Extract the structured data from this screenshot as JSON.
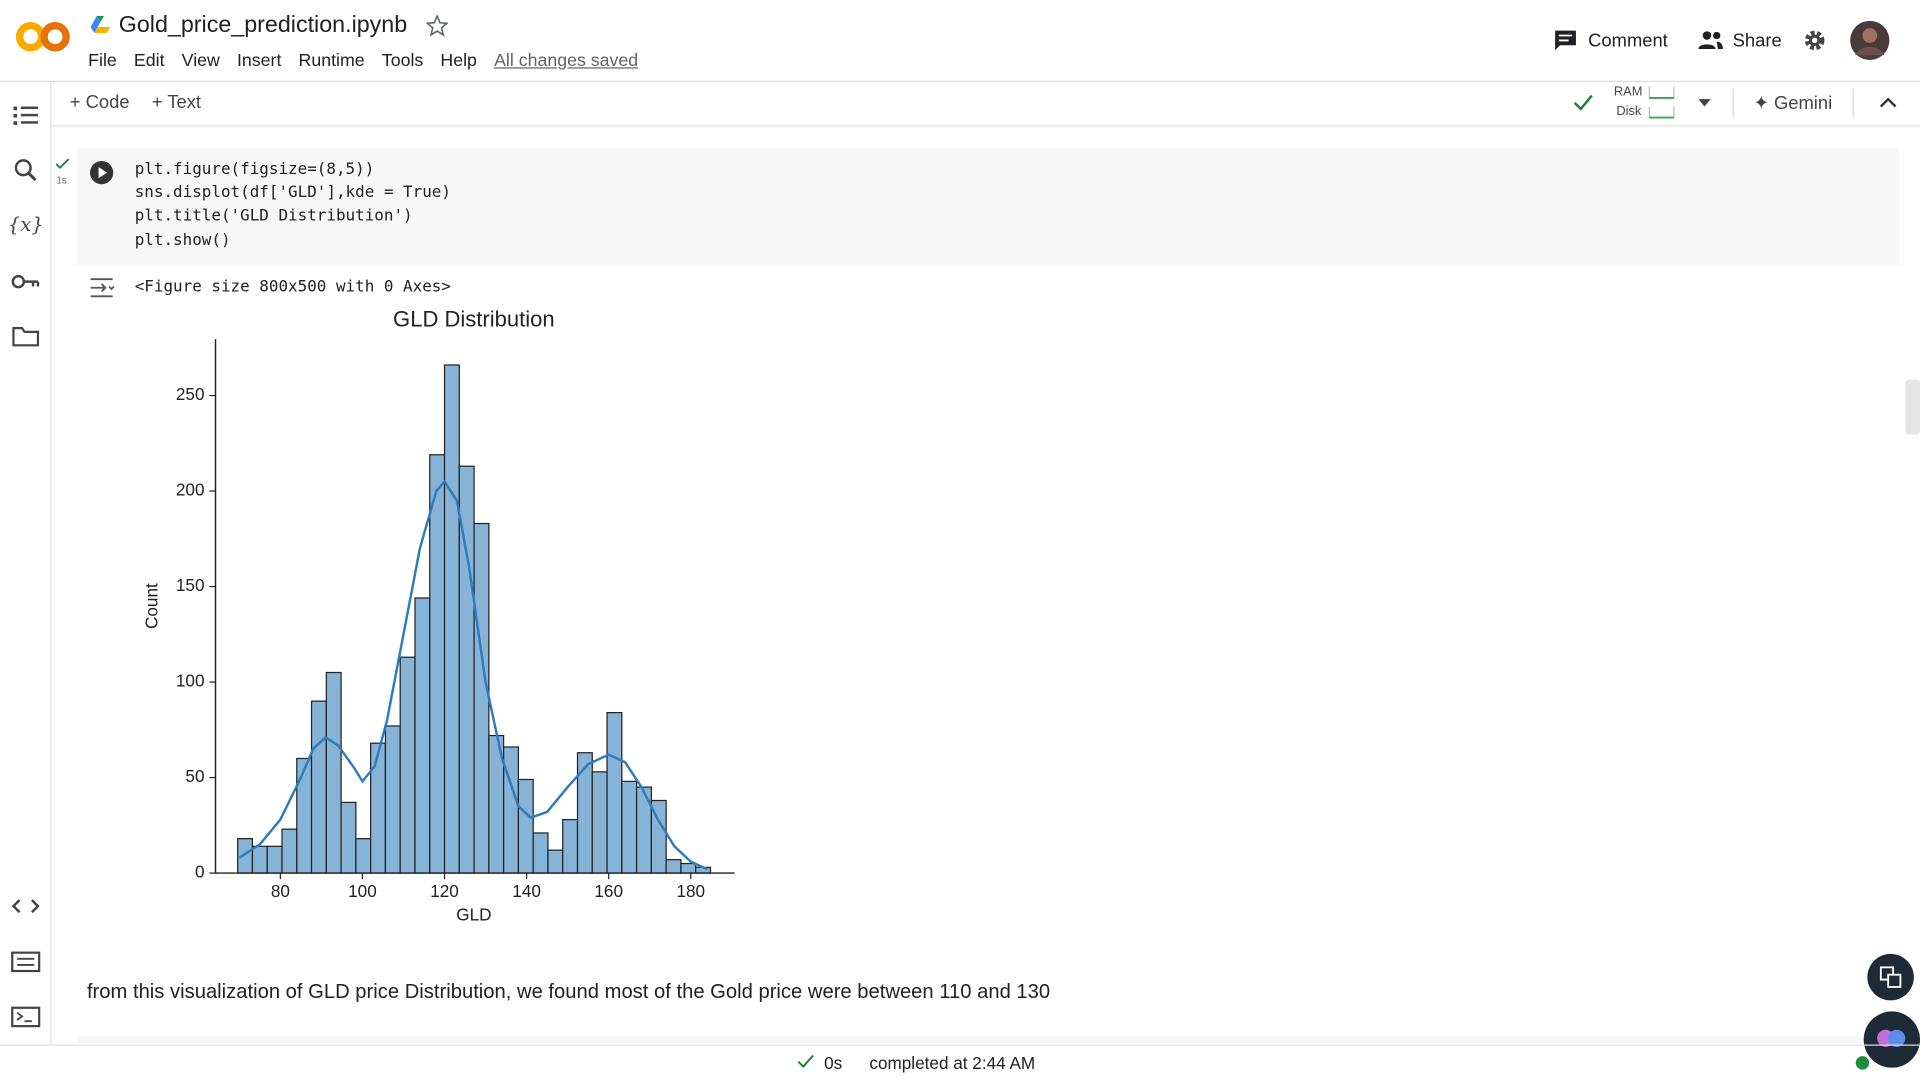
{
  "header": {
    "title": "Gold_price_prediction.ipynb",
    "menu": [
      "File",
      "Edit",
      "View",
      "Insert",
      "Runtime",
      "Tools",
      "Help"
    ],
    "saved": "All changes saved",
    "comment": "Comment",
    "share": "Share"
  },
  "toolbar": {
    "code": "Code",
    "text": "Text",
    "ram": "RAM",
    "disk": "Disk",
    "gemini": "Gemini"
  },
  "cell": {
    "time": "1s",
    "code": [
      "plt.figure(figsize=(8,5))",
      "sns.displot(df['GLD'],kde = True)",
      "plt.title('GLD Distribution')",
      "plt.show()"
    ],
    "output": "<Figure size 800x500 with 0 Axes>"
  },
  "chart_data": {
    "type": "histogram",
    "title": "GLD Distribution",
    "xlabel": "GLD",
    "ylabel": "Count",
    "bins": [
      69.6,
      73.2,
      76.8,
      80.4,
      84.0,
      87.6,
      91.2,
      94.8,
      98.4,
      102.0,
      105.6,
      109.2,
      112.8,
      116.4,
      120.0,
      123.6,
      127.2,
      130.8,
      134.4,
      138.0,
      141.6,
      145.2,
      148.8,
      152.4,
      156.0,
      159.6,
      163.2,
      166.8,
      170.4,
      174.0,
      177.6,
      181.2,
      184.8
    ],
    "values": [
      18,
      14,
      14,
      23,
      60,
      90,
      105,
      37,
      18,
      68,
      77,
      113,
      144,
      219,
      266,
      213,
      183,
      72,
      66,
      49,
      21,
      12,
      28,
      63,
      53,
      84,
      48,
      45,
      38,
      7,
      5,
      3
    ],
    "color": "#86b3d6",
    "edgecolor": "#222222",
    "kde": {
      "x": [
        70,
        75,
        80,
        85,
        88,
        91,
        94,
        98,
        100,
        103,
        106,
        110,
        114,
        118,
        120,
        123,
        126,
        130,
        134,
        138,
        141,
        145,
        150,
        155,
        160,
        164,
        168,
        172,
        176,
        180,
        184
      ],
      "values": [
        8,
        15,
        28,
        50,
        65,
        71,
        67,
        55,
        48,
        56,
        80,
        125,
        170,
        200,
        205,
        195,
        160,
        100,
        60,
        35,
        29,
        32,
        45,
        57,
        62,
        58,
        45,
        28,
        14,
        6,
        2
      ],
      "color": "#2f7bbd"
    },
    "xlim": [
      64.2,
      190.7
    ],
    "ylim": [
      0,
      279.5
    ],
    "xticks": [
      80,
      100,
      120,
      140,
      160,
      180
    ],
    "yticks": [
      0,
      50,
      100,
      150,
      200,
      250
    ],
    "grid": false
  },
  "markdown": "from this visualization of GLD price Distribution, we found most of the Gold price were between 110 and 130",
  "status": {
    "time": "0s",
    "completed": "completed at 2:44 AM"
  }
}
